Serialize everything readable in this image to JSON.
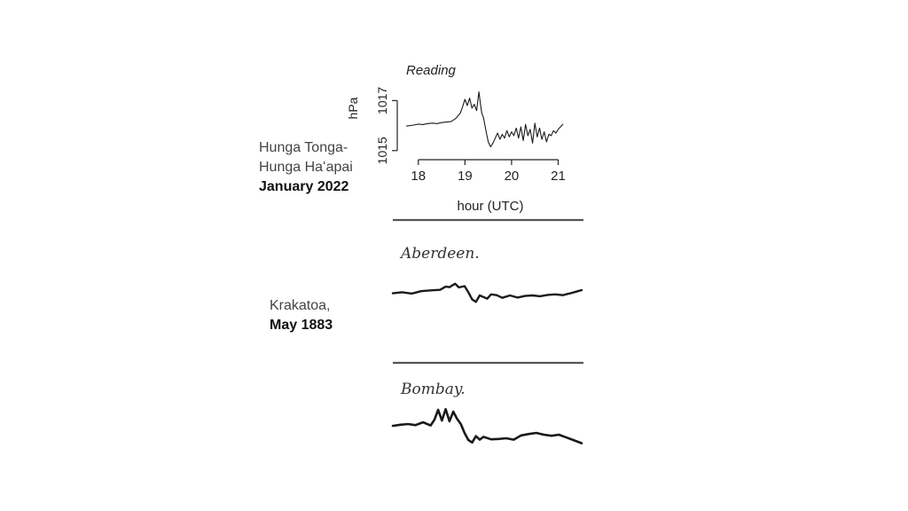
{
  "labels": {
    "hunga_line1": "Hunga Tonga-",
    "hunga_line2": "Hunga Haʻapai",
    "hunga_date": "January 2022",
    "krakatoa_line1": "Krakatoa,",
    "krakatoa_date": "May 1883"
  },
  "chart_data": [
    {
      "type": "line",
      "title": "Reading",
      "xlabel": "hour (UTC)",
      "ylabel": "hPa",
      "xlim": [
        17.7,
        21.2
      ],
      "ylim": [
        1014.85,
        1017.9
      ],
      "xticks": [
        18,
        19,
        20,
        21
      ],
      "xtick_labels": [
        "18",
        "19",
        "20",
        "21"
      ],
      "yticks": [
        1015,
        1017
      ],
      "ytick_labels": [
        "1015",
        "1017"
      ],
      "grid": false,
      "series": [
        {
          "x": [
            17.75,
            17.9,
            18.0,
            18.1,
            18.2,
            18.3,
            18.4,
            18.5,
            18.6,
            18.7,
            18.8,
            18.9,
            18.95,
            19.0,
            19.05,
            19.1,
            19.15,
            19.2,
            19.25,
            19.3,
            19.33,
            19.36,
            19.4,
            19.45,
            19.5,
            19.55,
            19.6,
            19.65,
            19.7,
            19.75,
            19.8,
            19.85,
            19.9,
            19.95,
            20.0,
            20.05,
            20.1,
            20.15,
            20.2,
            20.25,
            20.3,
            20.35,
            20.4,
            20.45,
            20.5,
            20.55,
            20.6,
            20.65,
            20.7,
            20.75,
            20.8,
            20.85,
            20.9,
            20.95,
            21.0,
            21.05,
            21.1
          ],
          "y": [
            1015.98,
            1016.02,
            1016.06,
            1016.04,
            1016.08,
            1016.1,
            1016.08,
            1016.12,
            1016.14,
            1016.16,
            1016.28,
            1016.5,
            1016.75,
            1017.05,
            1016.8,
            1017.1,
            1016.7,
            1016.85,
            1016.6,
            1017.35,
            1016.9,
            1016.5,
            1016.3,
            1015.8,
            1015.35,
            1015.15,
            1015.3,
            1015.5,
            1015.7,
            1015.45,
            1015.65,
            1015.5,
            1015.8,
            1015.55,
            1015.75,
            1015.6,
            1015.9,
            1015.5,
            1015.95,
            1015.4,
            1016.05,
            1015.6,
            1015.85,
            1015.3,
            1016.1,
            1015.55,
            1015.9,
            1015.45,
            1015.75,
            1015.35,
            1015.65,
            1015.6,
            1015.8,
            1015.7,
            1015.85,
            1015.95,
            1016.05
          ]
        }
      ]
    },
    {
      "type": "line",
      "title": "Aberdeen.",
      "xlim": [
        0,
        100
      ],
      "ylim": [
        -10,
        10
      ],
      "grid": false,
      "series": [
        {
          "x": [
            0,
            5,
            10,
            15,
            20,
            25,
            28,
            30,
            33,
            35,
            38,
            40,
            42,
            44,
            46,
            48,
            50,
            52,
            55,
            58,
            62,
            66,
            70,
            74,
            78,
            82,
            86,
            90,
            94,
            97,
            100
          ],
          "y": [
            -0.2,
            0.2,
            -0.3,
            0.6,
            0.9,
            1.1,
            2.3,
            2.1,
            3.4,
            2.0,
            2.5,
            0.2,
            -2.5,
            -3.4,
            -1.0,
            -1.6,
            -2.2,
            -0.6,
            -0.9,
            -1.9,
            -1.0,
            -1.8,
            -1.2,
            -1.0,
            -1.3,
            -0.8,
            -0.6,
            -0.9,
            -0.2,
            0.4,
            1.0
          ]
        }
      ]
    },
    {
      "type": "line",
      "title": "Bombay.",
      "xlim": [
        0,
        100
      ],
      "ylim": [
        -10,
        10
      ],
      "grid": false,
      "series": [
        {
          "x": [
            0,
            4,
            8,
            12,
            16,
            20,
            22,
            24,
            26,
            28,
            30,
            32,
            34,
            36,
            38,
            40,
            42,
            44,
            46,
            48,
            52,
            56,
            60,
            64,
            68,
            72,
            76,
            80,
            84,
            88,
            92,
            96,
            100
          ],
          "y": [
            1.5,
            1.8,
            2.0,
            1.7,
            2.5,
            1.6,
            3.2,
            6.0,
            3.0,
            6.2,
            2.8,
            5.5,
            3.5,
            2.0,
            -0.5,
            -2.5,
            -3.2,
            -1.4,
            -2.4,
            -1.6,
            -2.3,
            -2.2,
            -2.0,
            -2.4,
            -1.2,
            -0.8,
            -0.5,
            -1.0,
            -1.3,
            -1.0,
            -1.8,
            -2.6,
            -3.4
          ]
        }
      ]
    }
  ]
}
